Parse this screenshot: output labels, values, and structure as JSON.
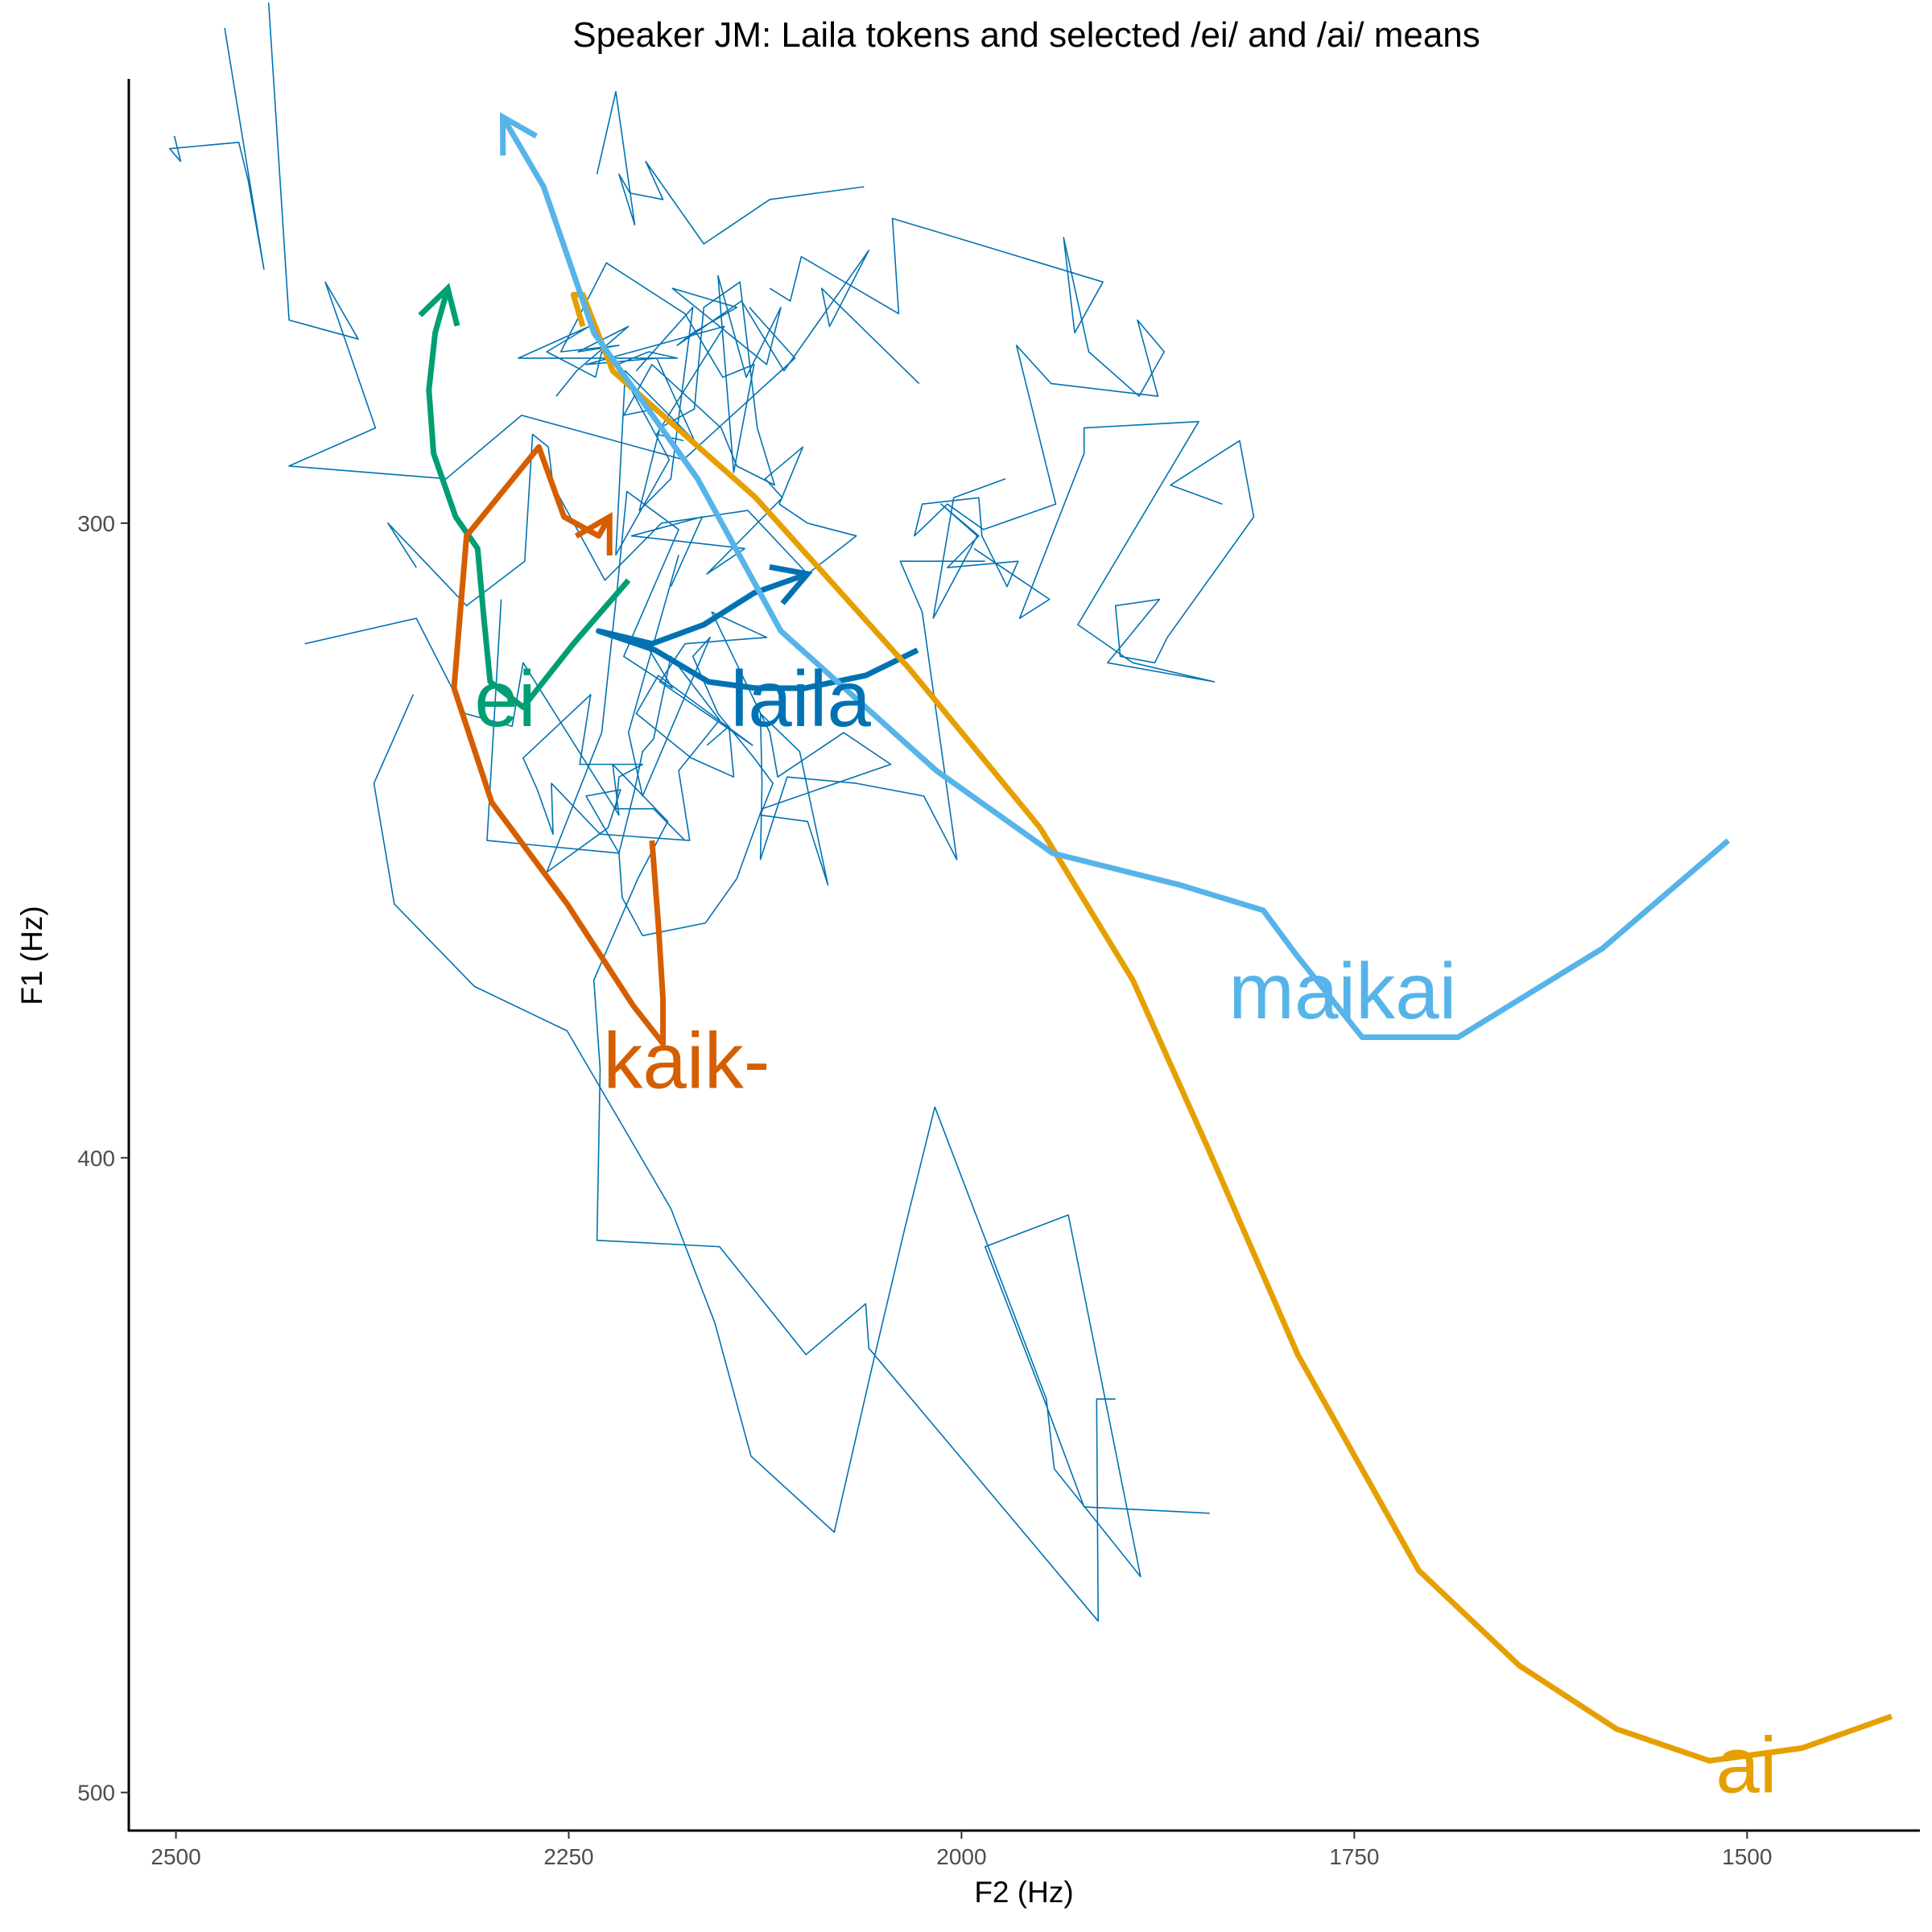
{
  "chart_data": {
    "type": "line",
    "title": "Speaker JM: Laila tokens and selected /ei/ and /ai/ means",
    "xlabel": "F2 (Hz)",
    "ylabel": "F1 (Hz)",
    "x_reversed": true,
    "y_reversed": true,
    "xlim": [
      2530,
      1390
    ],
    "ylim": [
      230,
      506
    ],
    "x_ticks": [
      {
        "value": 2500,
        "label": "2500"
      },
      {
        "value": 2250,
        "label": "2250"
      },
      {
        "value": 2000,
        "label": "2000"
      },
      {
        "value": 1750,
        "label": "1750"
      },
      {
        "value": 1500,
        "label": "1500"
      }
    ],
    "y_ticks": [
      {
        "value": 300,
        "label": "300"
      },
      {
        "value": 400,
        "label": "400"
      },
      {
        "value": 500,
        "label": "500"
      }
    ],
    "grid": false,
    "legend": "none",
    "background": "#ffffff",
    "token_color": "#0072B2",
    "tokens": [
      [
        [
          2501,
          239
        ],
        [
          2497,
          243
        ],
        [
          2504,
          241
        ],
        [
          2460,
          240
        ],
        [
          2454,
          246
        ],
        [
          2444,
          260
        ],
        [
          2469,
          222
        ]
      ],
      [
        [
          2441,
          218
        ],
        [
          2428,
          268
        ],
        [
          2384,
          271
        ],
        [
          2405,
          262
        ],
        [
          2373,
          285
        ],
        [
          2428,
          291
        ],
        [
          2328,
          293
        ],
        [
          2280,
          283
        ],
        [
          2177,
          290
        ],
        [
          2106,
          274
        ],
        [
          2135,
          266
        ]
      ],
      [
        [
          2232,
          245
        ],
        [
          2220,
          232
        ],
        [
          2208,
          253
        ],
        [
          2218,
          245
        ],
        [
          2211,
          248
        ],
        [
          2190,
          249
        ],
        [
          2201,
          243
        ],
        [
          2164,
          256
        ],
        [
          2122,
          249
        ],
        [
          2062,
          247
        ]
      ],
      [
        [
          2258,
          280
        ],
        [
          2245,
          276
        ],
        [
          2212,
          269
        ],
        [
          2244,
          273
        ],
        [
          2218,
          272
        ],
        [
          2255,
          273
        ],
        [
          2226,
          259
        ],
        [
          2176,
          267
        ],
        [
          2152,
          277
        ],
        [
          2132,
          275
        ],
        [
          2145,
          292
        ],
        [
          2155,
          261
        ],
        [
          2137,
          277
        ],
        [
          2115,
          266
        ],
        [
          2124,
          275
        ],
        [
          2184,
          263
        ],
        [
          2143,
          266
        ],
        [
          2171,
          270
        ],
        [
          2181,
          272
        ],
        [
          2140,
          265
        ],
        [
          2113,
          276
        ],
        [
          2059,
          257
        ],
        [
          2084,
          269
        ],
        [
          2089,
          263
        ],
        [
          2027,
          278
        ]
      ],
      [
        [
          2207,
          276
        ],
        [
          2171,
          266
        ],
        [
          2185,
          293
        ],
        [
          2205,
          298
        ],
        [
          2192,
          285
        ],
        [
          2170,
          282
        ],
        [
          2164,
          266
        ],
        [
          2141,
          262
        ],
        [
          2130,
          285
        ],
        [
          2119,
          294
        ],
        [
          2143,
          291
        ],
        [
          2153,
          285
        ],
        [
          2197,
          275
        ],
        [
          2215,
          283
        ],
        [
          2195,
          282
        ],
        [
          2229,
          273
        ],
        [
          2233,
          277
        ],
        [
          2264,
          273
        ],
        [
          2237,
          269
        ],
        [
          2282,
          274
        ],
        [
          2181,
          274
        ],
        [
          2199,
          273
        ],
        [
          2219,
          275
        ],
        [
          2186,
          290
        ],
        [
          2220,
          305
        ],
        [
          2214,
          276
        ],
        [
          2170,
          287
        ],
        [
          2194,
          274
        ],
        [
          2239,
          275
        ],
        [
          2151,
          269
        ],
        [
          2194,
          286
        ],
        [
          2177,
          287
        ]
      ],
      [
        [
          2122,
          263
        ],
        [
          2109,
          265
        ],
        [
          2102,
          258
        ],
        [
          2040,
          267
        ],
        [
          2044,
          252
        ],
        [
          1990,
          256
        ],
        [
          1910,
          262
        ],
        [
          1928,
          270
        ],
        [
          1935,
          255
        ],
        [
          1919,
          273
        ],
        [
          1887,
          280
        ],
        [
          1871,
          273
        ],
        [
          1888,
          268
        ],
        [
          1875,
          280
        ],
        [
          1943,
          278
        ],
        [
          1965,
          272
        ],
        [
          1940,
          297
        ],
        [
          1986,
          301
        ],
        [
          2009,
          297
        ],
        [
          2030,
          302
        ],
        [
          2025,
          297
        ],
        [
          1989,
          296
        ],
        [
          1987,
          302
        ],
        [
          1971,
          310
        ],
        [
          1964,
          306
        ],
        [
          2009,
          307
        ],
        [
          1989,
          302
        ],
        [
          2013,
          297
        ],
        [
          1990,
          302
        ],
        [
          2018,
          315
        ],
        [
          2005,
          296
        ],
        [
          1972,
          293
        ]
      ],
      [
        [
          2185,
          310
        ],
        [
          2165,
          299
        ],
        [
          2210,
          302
        ],
        [
          2138,
          304
        ],
        [
          2162,
          308
        ],
        [
          2114,
          296
        ],
        [
          2125,
          293
        ],
        [
          2101,
          288
        ],
        [
          2116,
          297
        ],
        [
          2098,
          300
        ],
        [
          2067,
          302
        ],
        [
          2098,
          308
        ],
        [
          2136,
          298
        ],
        [
          2191,
          300
        ],
        [
          2227,
          309
        ],
        [
          2260,
          294
        ],
        [
          2263,
          288
        ],
        [
          2273,
          286
        ],
        [
          2278,
          306
        ],
        [
          2315,
          313
        ],
        [
          2365,
          300
        ],
        [
          2347,
          307
        ]
      ],
      [
        [
          1992,
          304
        ],
        [
          1944,
          312
        ],
        [
          1963,
          315
        ],
        [
          1922,
          289
        ],
        [
          1922,
          285
        ],
        [
          1849,
          284
        ],
        [
          1926,
          316
        ],
        [
          1891,
          322
        ],
        [
          1839,
          325
        ],
        [
          1907,
          322
        ],
        [
          1874,
          312
        ],
        [
          1902,
          313
        ],
        [
          1899,
          321
        ],
        [
          1877,
          322
        ],
        [
          1869,
          318
        ],
        [
          1814,
          299
        ],
        [
          1823,
          287
        ],
        [
          1867,
          294
        ],
        [
          1834,
          297
        ]
      ],
      [
        [
          2176,
          350
        ],
        [
          2196,
          345
        ],
        [
          2220,
          345
        ],
        [
          2218,
          340
        ],
        [
          2203,
          338
        ],
        [
          2243,
          338
        ],
        [
          2236,
          327
        ],
        [
          2279,
          337
        ],
        [
          2270,
          342
        ],
        [
          2260,
          349
        ],
        [
          2261,
          341
        ],
        [
          2230,
          349
        ],
        [
          2173,
          350
        ],
        [
          2180,
          339
        ],
        [
          2154,
          331
        ],
        [
          2185,
          321
        ],
        [
          2196,
          334
        ],
        [
          2203,
          336
        ],
        [
          2208,
          342
        ],
        [
          2218,
          352
        ],
        [
          2216,
          359
        ],
        [
          2203,
          365
        ],
        [
          2163,
          363
        ],
        [
          2143,
          356
        ],
        [
          2127,
          345
        ],
        [
          2045,
          338
        ],
        [
          2075,
          333
        ],
        [
          2117,
          340
        ],
        [
          2122,
          333
        ],
        [
          2159,
          314
        ],
        [
          2124,
          318
        ],
        [
          2176,
          319
        ],
        [
          2192,
          325
        ],
        [
          2133,
          335
        ],
        [
          2193,
          324
        ],
        [
          2207,
          330
        ],
        [
          2172,
          337
        ],
        [
          2145,
          340
        ],
        [
          2148,
          332
        ],
        [
          2162,
          335
        ]
      ],
      [
        [
          2293,
          312
        ],
        [
          2302,
          350
        ],
        [
          2218,
          352
        ],
        [
          2239,
          343
        ],
        [
          2217,
          342
        ],
        [
          2225,
          348
        ],
        [
          2264,
          355
        ],
        [
          2229,
          333
        ],
        [
          2219,
          310
        ],
        [
          2213,
          295
        ],
        [
          2180,
          301
        ],
        [
          2215,
          321
        ],
        [
          2184,
          326
        ],
        [
          2201,
          319
        ]
      ],
      [
        [
          2180,
          305
        ],
        [
          2212,
          333
        ],
        [
          2203,
          343
        ],
        [
          2160,
          318
        ],
        [
          2171,
          321
        ],
        [
          2155,
          330
        ],
        [
          2132,
          337
        ],
        [
          2120,
          341
        ],
        [
          2128,
          346
        ],
        [
          2098,
          347
        ],
        [
          2085,
          357
        ],
        [
          2103,
          336
        ],
        [
          2128,
          330
        ],
        [
          2127,
          341
        ],
        [
          2128,
          353
        ],
        [
          2111,
          340
        ],
        [
          2067,
          341
        ],
        [
          2024,
          343
        ],
        [
          2003,
          353
        ],
        [
          2025,
          314
        ],
        [
          2039,
          306
        ],
        [
          1985,
          306
        ]
      ],
      [
        [
          2349,
          327
        ],
        [
          2374,
          341
        ],
        [
          2361,
          360
        ],
        [
          2310,
          373
        ],
        [
          2251,
          380
        ],
        [
          2185,
          408
        ],
        [
          2157,
          426
        ],
        [
          2134,
          447
        ],
        [
          2081,
          459
        ],
        [
          2056,
          432
        ],
        [
          2036,
          411
        ],
        [
          2017,
          392
        ],
        [
          1946,
          438
        ],
        [
          1941,
          449
        ],
        [
          1886,
          466
        ],
        [
          1932,
          409
        ],
        [
          1985,
          414
        ],
        [
          1946,
          439
        ],
        [
          1922,
          455
        ],
        [
          1842,
          456
        ]
      ],
      [
        [
          2418,
          319
        ],
        [
          2347,
          315
        ],
        [
          2316,
          330
        ],
        [
          2286,
          332
        ],
        [
          2279,
          322
        ],
        [
          2218,
          346
        ],
        [
          2222,
          338
        ],
        [
          2187,
          347
        ],
        [
          2206,
          356
        ],
        [
          2234,
          372
        ],
        [
          2230,
          386
        ],
        [
          2232,
          413
        ],
        [
          2154,
          414
        ],
        [
          2099,
          431
        ],
        [
          2061,
          423
        ],
        [
          2059,
          430
        ],
        [
          1913,
          473
        ],
        [
          1914,
          438
        ],
        [
          1902,
          438
        ]
      ]
    ],
    "series": [
      {
        "name": "ei",
        "color": "#009E73",
        "label_at": [
          2310,
          332
        ],
        "points": [
          [
            2212,
            309
          ],
          [
            2247,
            319
          ],
          [
            2279,
            329
          ],
          [
            2300,
            325
          ],
          [
            2304,
            315
          ],
          [
            2308,
            304
          ],
          [
            2322,
            299
          ],
          [
            2336,
            289
          ],
          [
            2339,
            279
          ],
          [
            2335,
            270
          ],
          [
            2327,
            263
          ]
        ],
        "arrow": true
      },
      {
        "name": "laila",
        "color": "#0072B2",
        "label_at": [
          2147,
          332
        ],
        "points": [
          [
            2028,
            320
          ],
          [
            2061,
            324
          ],
          [
            2100,
            326
          ],
          [
            2131,
            326
          ],
          [
            2161,
            325
          ],
          [
            2195,
            320
          ],
          [
            2231,
            317
          ],
          [
            2197,
            319
          ],
          [
            2164,
            316
          ],
          [
            2132,
            311
          ],
          [
            2098,
            308
          ]
        ],
        "arrow": true
      },
      {
        "name": "kaik-",
        "color": "#D55E00",
        "label_at": [
          2228,
          389
        ],
        "points": [
          [
            2197,
            350
          ],
          [
            2193,
            363
          ],
          [
            2190,
            375
          ],
          [
            2190,
            382
          ],
          [
            2209,
            376
          ],
          [
            2251,
            360
          ],
          [
            2299,
            344
          ],
          [
            2323,
            326
          ],
          [
            2315,
            302
          ],
          [
            2269,
            288
          ],
          [
            2253,
            299
          ],
          [
            2231,
            302
          ],
          [
            2224,
            299
          ]
        ],
        "arrow": true
      },
      {
        "name": "ai",
        "color": "#E69F00",
        "label_at": [
          1520,
          500
        ],
        "points": [
          [
            1408,
            488
          ],
          [
            1465,
            493
          ],
          [
            1524,
            495
          ],
          [
            1583,
            490
          ],
          [
            1645,
            480
          ],
          [
            1709,
            465
          ],
          [
            1786,
            431
          ],
          [
            1844,
            398
          ],
          [
            1891,
            372
          ],
          [
            1950,
            348
          ],
          [
            2033,
            323
          ],
          [
            2131,
            296
          ],
          [
            2222,
            276
          ],
          [
            2241,
            264
          ],
          [
            2247,
            264
          ],
          [
            2241,
            269
          ]
        ],
        "arrow": false
      },
      {
        "name": "maikai",
        "color": "#56B4E9",
        "label_at": [
          1830,
          378
        ],
        "points": [
          [
            1512,
            350
          ],
          [
            1592,
            367
          ],
          [
            1684,
            381
          ],
          [
            1745,
            381
          ],
          [
            1787,
            368
          ],
          [
            1808,
            361
          ],
          [
            1861,
            357
          ],
          [
            1942,
            352
          ],
          [
            2016,
            339
          ],
          [
            2115,
            317
          ],
          [
            2168,
            293
          ],
          [
            2234,
            270
          ],
          [
            2266,
            247
          ],
          [
            2292,
            236
          ]
        ],
        "arrow": true
      }
    ]
  }
}
